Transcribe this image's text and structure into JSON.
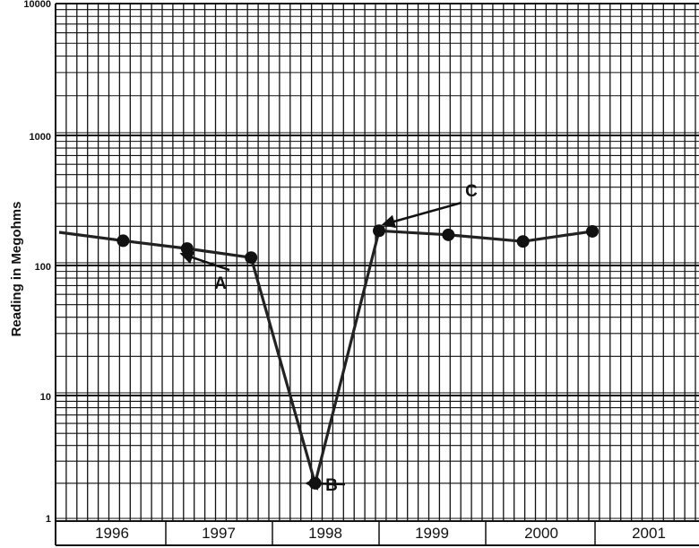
{
  "chart_data": {
    "type": "line",
    "title": "",
    "xlabel": "",
    "ylabel": "Reading in Megohms",
    "y_scale": "log",
    "ylim": [
      1,
      10000
    ],
    "y_ticks": [
      "10000",
      "1000",
      "100",
      "10",
      "1"
    ],
    "x_categories": [
      "1996",
      "1997",
      "1998",
      "1999",
      "2000",
      "2001"
    ],
    "grid": true,
    "series": [
      {
        "points": [
          {
            "x": 1996.0,
            "y": 180,
            "marker": false
          },
          {
            "x": 1996.6,
            "y": 155,
            "marker": true
          },
          {
            "x": 1997.2,
            "y": 135,
            "marker": true
          },
          {
            "x": 1997.8,
            "y": 115,
            "marker": true
          },
          {
            "x": 1998.4,
            "y": 2,
            "marker": true
          },
          {
            "x": 1999.0,
            "y": 185,
            "marker": true
          },
          {
            "x": 1999.65,
            "y": 172,
            "marker": true
          },
          {
            "x": 2000.35,
            "y": 153,
            "marker": true
          },
          {
            "x": 2001.0,
            "y": 183,
            "marker": true
          }
        ]
      }
    ],
    "annotations": [
      {
        "label": "A",
        "point_index": 2,
        "arrow_from": "lower-left"
      },
      {
        "label": "B",
        "point_index": 4,
        "arrow_from": "left"
      },
      {
        "label": "C",
        "point_index": 5,
        "arrow_from": "upper-right"
      }
    ]
  }
}
